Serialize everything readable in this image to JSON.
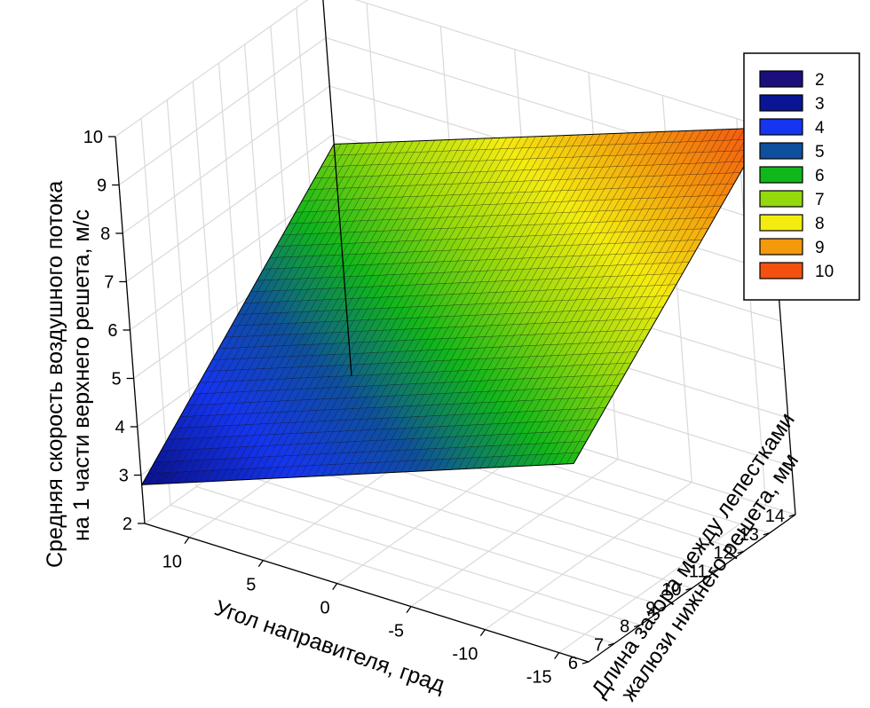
{
  "chart_data": {
    "type": "surface3d",
    "title": "",
    "zlabel_lines": [
      "Средняя скорость воздушного потока",
      "на 1 части верхнего решета, м/с"
    ],
    "xlabel": "Угол направителя, град",
    "ylabel_lines": [
      "Длина зазора между лепестками",
      "жалюзи нижнего решета, мм"
    ],
    "x_ticks": [
      "10",
      "5",
      "0",
      "-5",
      "-10",
      "-15"
    ],
    "x_tick_values": [
      10,
      5,
      0,
      -5,
      -10,
      -15
    ],
    "xlim": [
      13,
      -17
    ],
    "y_ticks": [
      "6",
      "7",
      "8",
      "9",
      "10",
      "11",
      "12",
      "13",
      "14"
    ],
    "y_tick_values": [
      6,
      7,
      8,
      9,
      10,
      11,
      12,
      13,
      14
    ],
    "ylim": [
      6,
      14
    ],
    "z_ticks": [
      "2",
      "3",
      "4",
      "5",
      "6",
      "7",
      "8",
      "9",
      "10"
    ],
    "z_tick_values": [
      2,
      3,
      4,
      5,
      6,
      7,
      8,
      9,
      10
    ],
    "zlim": [
      2,
      10
    ],
    "grid": true,
    "surface": {
      "x_range": [
        13,
        -17
      ],
      "y_range": [
        6,
        14
      ],
      "corners": [
        {
          "x": 13,
          "y": 6,
          "z": 2.8
        },
        {
          "x": -17,
          "y": 6,
          "z": 6.1
        },
        {
          "x": -17,
          "y": 14,
          "z": 10.0
        },
        {
          "x": 13,
          "y": 14,
          "z": 6.8
        }
      ]
    },
    "legend": {
      "position": "top-right",
      "entries": [
        {
          "label": "2",
          "color": "#1b0f7d"
        },
        {
          "label": "3",
          "color": "#0a1596"
        },
        {
          "label": "4",
          "color": "#1535f0"
        },
        {
          "label": "5",
          "color": "#0e4f9e"
        },
        {
          "label": "6",
          "color": "#10b71a"
        },
        {
          "label": "7",
          "color": "#93d90c"
        },
        {
          "label": "8",
          "color": "#f4ec10"
        },
        {
          "label": "9",
          "color": "#f4980c"
        },
        {
          "label": "10",
          "color": "#f45010"
        }
      ]
    }
  }
}
